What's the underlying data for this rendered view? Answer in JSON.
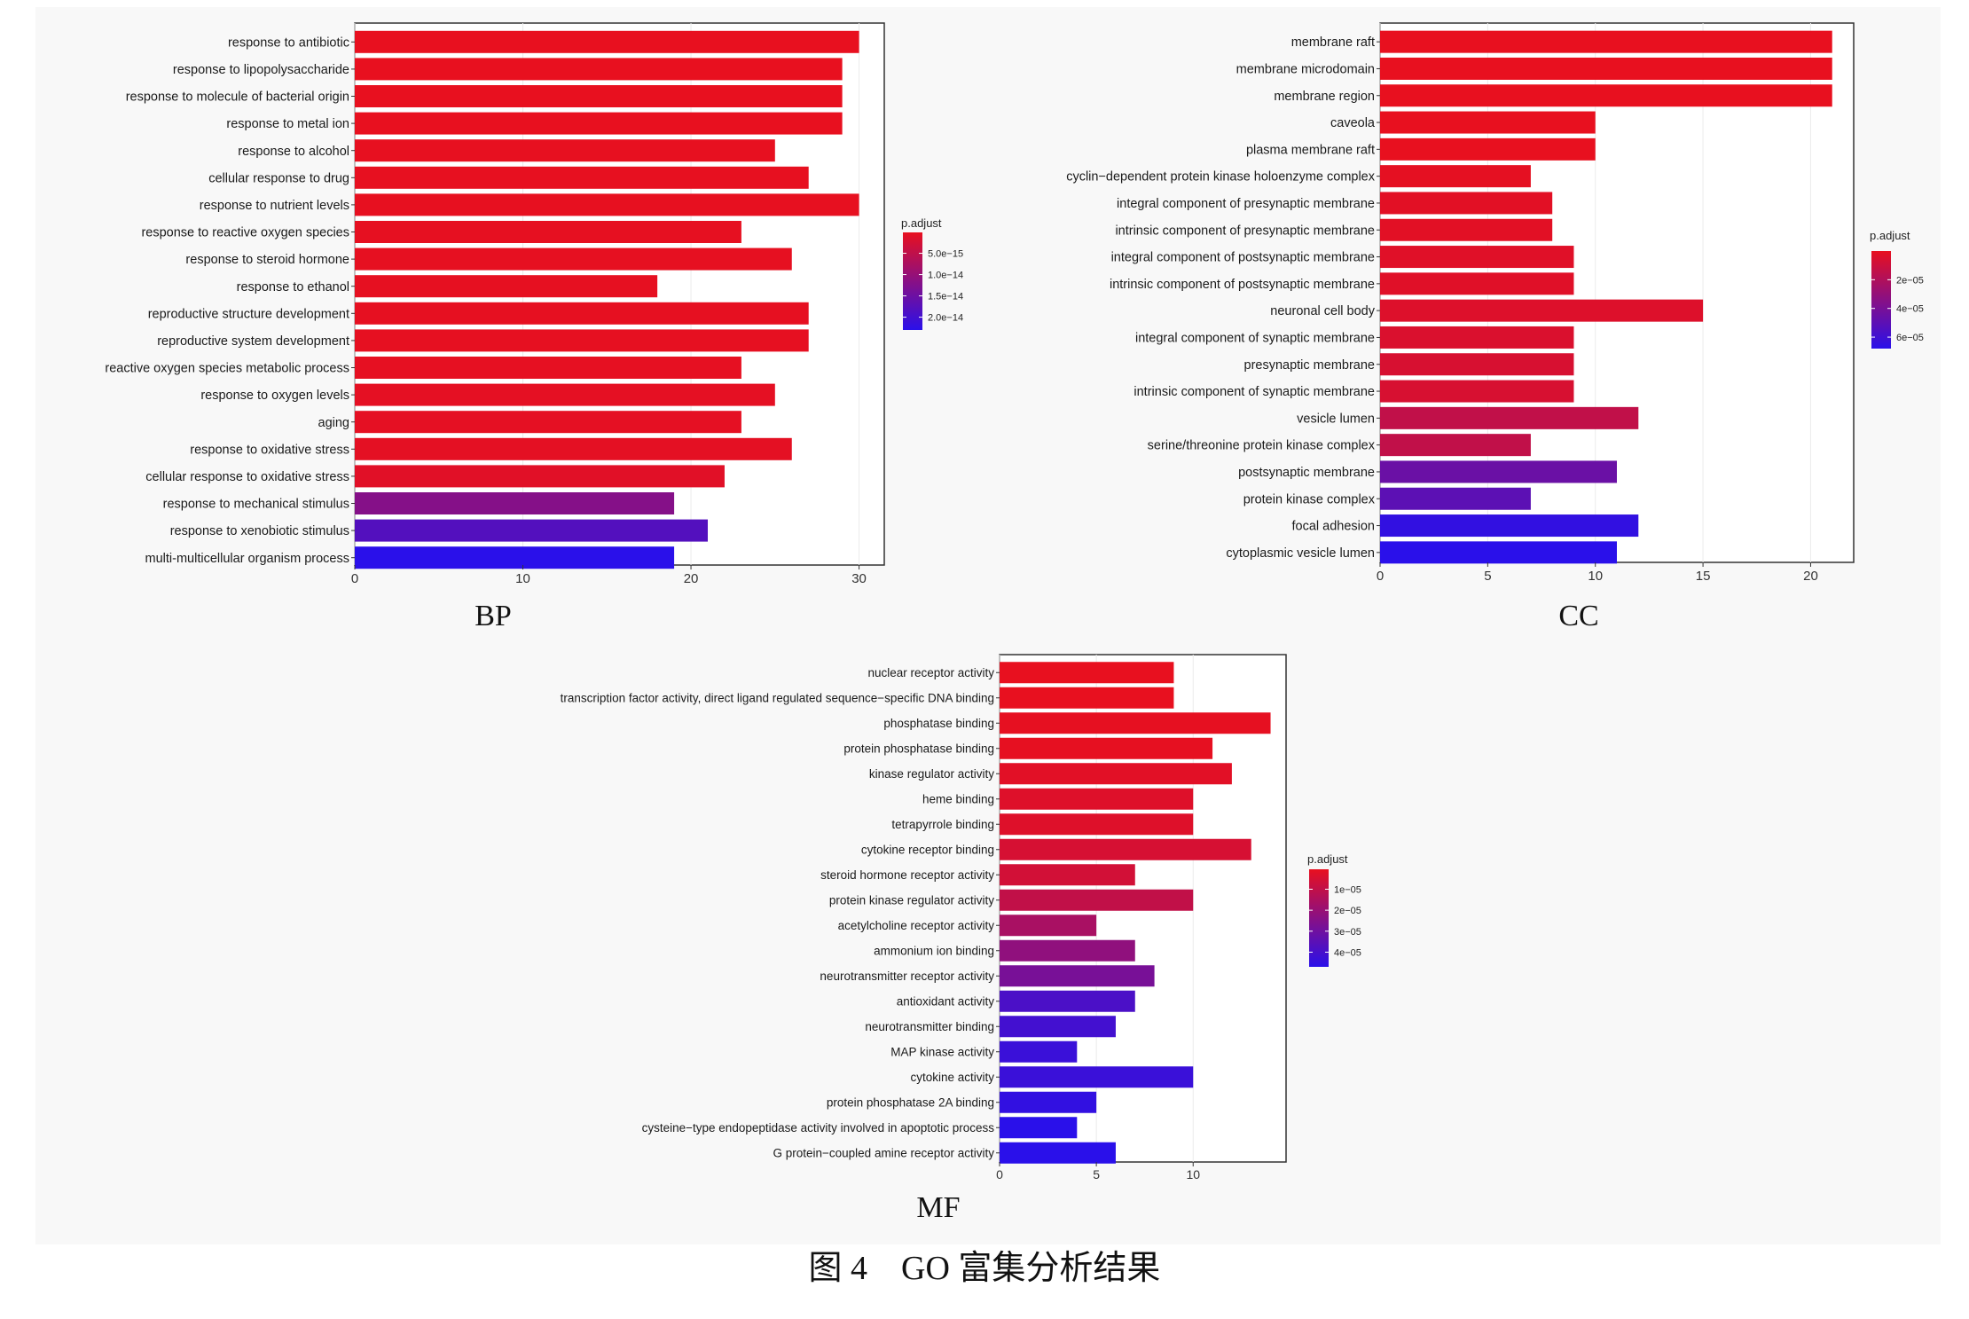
{
  "caption": "图 4　GO 富集分析结果",
  "chart_data": [
    {
      "type": "bar",
      "orientation": "horizontal",
      "panel_label": "BP",
      "categories": [
        "response to antibiotic",
        "response to lipopolysaccharide",
        "response to molecule of bacterial origin",
        "response to metal ion",
        "response to alcohol",
        "cellular response to drug",
        "response to nutrient levels",
        "response to reactive oxygen species",
        "response to steroid hormone",
        "response to ethanol",
        "reproductive structure development",
        "reproductive system development",
        "reactive oxygen species metabolic process",
        "response to oxygen levels",
        "aging",
        "response to oxidative stress",
        "cellular response to oxidative stress",
        "response to mechanical stimulus",
        "response to xenobiotic stimulus",
        "multi-multicellular organism process"
      ],
      "values": [
        30,
        29,
        29,
        29,
        25,
        27,
        30,
        23,
        26,
        18,
        27,
        27,
        23,
        25,
        23,
        26,
        22,
        19,
        21,
        19
      ],
      "p_adjust": [
        1e-16,
        1e-16,
        1e-16,
        1e-16,
        2e-16,
        2e-16,
        2e-16,
        3e-16,
        3e-16,
        3e-16,
        3e-16,
        3e-16,
        4e-16,
        5e-16,
        5e-16,
        6e-16,
        1e-15,
        1.2e-14,
        1.8e-14,
        2.3e-14
      ],
      "xlim": [
        0,
        31.5
      ],
      "xticks": [
        "0",
        "10",
        "20",
        "30"
      ],
      "legend": {
        "title": "p.adjust",
        "labels": [
          "5.0e−15",
          "1.0e−14",
          "1.5e−14",
          "2.0e−14"
        ],
        "range": [
          1e-16,
          2.3e-14
        ],
        "position": "right"
      },
      "colors": {
        "low": "#e8101f",
        "high": "#2a10ea"
      }
    },
    {
      "type": "bar",
      "orientation": "horizontal",
      "panel_label": "CC",
      "categories": [
        "membrane raft",
        "membrane microdomain",
        "membrane region",
        "caveola",
        "plasma membrane raft",
        "cyclin−dependent protein kinase holoenzyme complex",
        "integral component of presynaptic membrane",
        "intrinsic component of presynaptic membrane",
        "integral component of postsynaptic membrane",
        "intrinsic component of postsynaptic membrane",
        "neuronal cell body",
        "integral component of synaptic membrane",
        "presynaptic membrane",
        "intrinsic component of synaptic membrane",
        "vesicle lumen",
        "serine/threonine protein kinase complex",
        "postsynaptic membrane",
        "protein kinase complex",
        "focal adhesion",
        "cytoplasmic vesicle lumen"
      ],
      "values": [
        21,
        21,
        21,
        10,
        10,
        7,
        8,
        8,
        9,
        9,
        15,
        9,
        9,
        9,
        12,
        7,
        11,
        7,
        12,
        11
      ],
      "p_adjust": [
        1e-09,
        1e-09,
        1e-09,
        1e-07,
        1e-07,
        1e-06,
        2e-06,
        2e-06,
        3e-06,
        3e-06,
        4e-06,
        5e-06,
        6e-06,
        6e-06,
        1.4e-05,
        1.4e-05,
        4.5e-05,
        5e-05,
        6.5e-05,
        6.8e-05
      ],
      "xlim": [
        0,
        22
      ],
      "xticks": [
        "0",
        "5",
        "10",
        "15",
        "20"
      ],
      "legend": {
        "title": "p.adjust",
        "labels": [
          "2e−05",
          "4e−05",
          "6e−05"
        ],
        "range": [
          1e-09,
          6.8e-05
        ],
        "position": "right"
      },
      "colors": {
        "low": "#e8101f",
        "high": "#2a10ea"
      }
    },
    {
      "type": "bar",
      "orientation": "horizontal",
      "panel_label": "MF",
      "categories": [
        "nuclear receptor activity",
        "transcription factor activity, direct ligand regulated sequence−specific DNA binding",
        "phosphatase binding",
        "protein phosphatase binding",
        "kinase regulator activity",
        "heme binding",
        "tetrapyrrole binding",
        "cytokine receptor binding",
        "steroid hormone receptor activity",
        "protein kinase regulator activity",
        "acetylcholine receptor activity",
        "ammonium ion binding",
        "neurotransmitter receptor activity",
        "antioxidant activity",
        "neurotransmitter binding",
        "MAP kinase activity",
        "cytokine activity",
        "protein phosphatase 2A binding",
        "cysteine−type endopeptidase activity involved in apoptotic process",
        "G protein−coupled amine receptor activity"
      ],
      "values": [
        9,
        9,
        14,
        11,
        12,
        10,
        10,
        13,
        7,
        10,
        5,
        7,
        8,
        7,
        6,
        4,
        10,
        5,
        4,
        6
      ],
      "p_adjust": [
        5e-07,
        5e-07,
        1e-06,
        1e-06,
        2e-06,
        3e-06,
        3e-06,
        5e-06,
        6e-06,
        1e-05,
        1.6e-05,
        2.2e-05,
        2.8e-05,
        3.9e-05,
        4.1e-05,
        4.3e-05,
        4.3e-05,
        4.5e-05,
        4.7e-05,
        4.7e-05
      ],
      "xlim": [
        0,
        14.8
      ],
      "xticks": [
        "0",
        "5",
        "10"
      ],
      "legend": {
        "title": "p.adjust",
        "labels": [
          "1e−05",
          "2e−05",
          "3e−05",
          "4e−05"
        ],
        "range": [
          5e-07,
          4.7e-05
        ],
        "position": "right"
      },
      "colors": {
        "low": "#e8101f",
        "high": "#2a10ea"
      }
    }
  ]
}
